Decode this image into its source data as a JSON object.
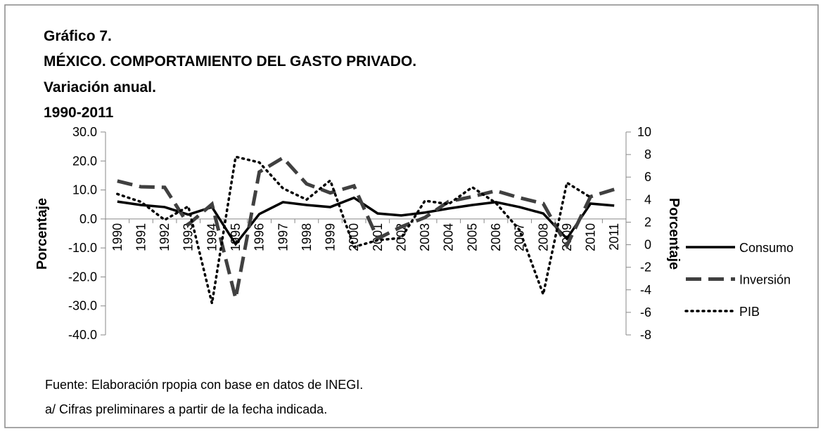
{
  "chart_data": {
    "type": "line",
    "title": "Gráfico 7.",
    "subtitle_lines": [
      "MÉXICO. COMPORTAMIENTO DEL GASTO PRIVADO.",
      "Variación anual.",
      "1990-2011"
    ],
    "ylabel": "Porcentaje",
    "y2label": "Porcentaje",
    "categories": [
      "1990",
      "1991",
      "1992",
      "1993",
      "1994",
      "1995",
      "1996",
      "1997",
      "1998",
      "1999",
      "2000",
      "2001",
      "2002",
      "2003",
      "2004",
      "2005",
      "2006",
      "2007",
      "2008",
      "2009",
      "2010",
      "2011"
    ],
    "series": [
      {
        "name": "Consumo",
        "color": "#000000",
        "line_style": "solid",
        "axis": "y",
        "values": [
          6.0,
          4.8,
          4.1,
          1.5,
          4.1,
          -8.7,
          1.7,
          5.8,
          4.8,
          4.1,
          7.3,
          1.9,
          1.2,
          2.2,
          3.6,
          4.8,
          5.8,
          4.1,
          1.9,
          -6.8,
          5.3,
          4.6
        ]
      },
      {
        "name": "Inversión",
        "color": "#404040",
        "line_style": "dashed",
        "axis": "y",
        "values": [
          13.1,
          11.1,
          10.9,
          -1.9,
          5.1,
          -27.4,
          16.2,
          21.1,
          12.1,
          9.0,
          11.4,
          -6.8,
          -2.7,
          0.5,
          6.0,
          7.7,
          9.7,
          7.3,
          5.3,
          -9.2,
          7.7,
          10.2
        ]
      },
      {
        "name": "PIB",
        "color": "#000000",
        "line_style": "dotted",
        "axis": "y2",
        "values": [
          4.5,
          3.8,
          2.2,
          3.4,
          -5.2,
          7.8,
          7.3,
          5.0,
          4.0,
          5.7,
          -0.2,
          0.4,
          0.6,
          3.9,
          3.6,
          5.1,
          3.7,
          1.3,
          -4.4,
          5.5,
          4.2,
          null
        ]
      }
    ],
    "ylim": [
      -40,
      30
    ],
    "yticks": [
      {
        "value": -40,
        "label": "-40.0"
      },
      {
        "value": -30,
        "label": "-30.0"
      },
      {
        "value": -20,
        "label": "-20.0"
      },
      {
        "value": -10,
        "label": "-10.0"
      },
      {
        "value": 0,
        "label": "0.0"
      },
      {
        "value": 10,
        "label": "10.0"
      },
      {
        "value": 20,
        "label": "20.0"
      },
      {
        "value": 30,
        "label": "30.0"
      }
    ],
    "y2lim": [
      -8,
      10
    ],
    "y2ticks": [
      -8,
      -6,
      -4,
      -2,
      0,
      2,
      4,
      6,
      8,
      10
    ],
    "grid": false,
    "legend": "right",
    "notes": [
      "Fuente: Elaboración rpopia con base en datos de INEGI.",
      "a/ Cifras preliminares a partir de la fecha indicada."
    ]
  }
}
